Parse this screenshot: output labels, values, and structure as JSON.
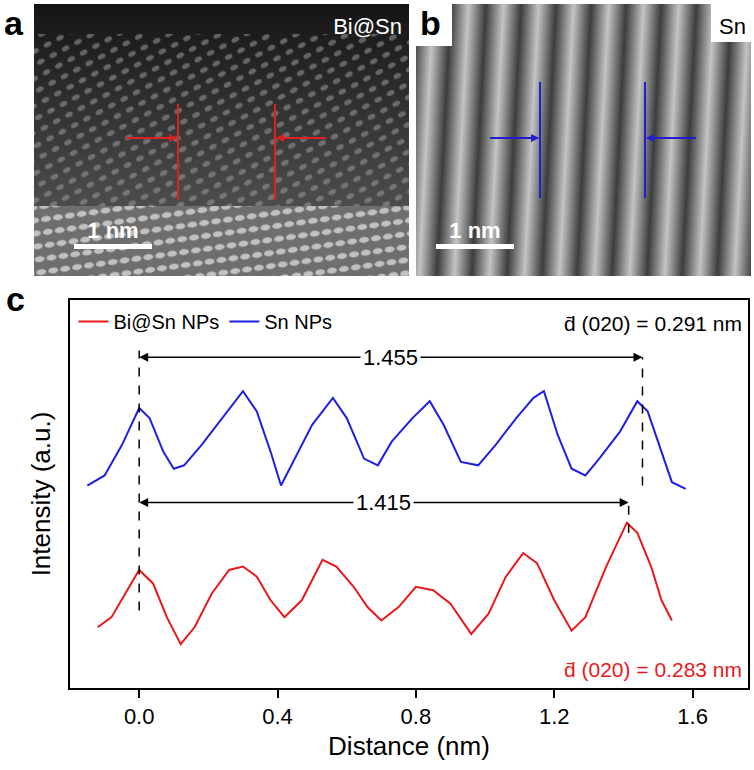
{
  "images": [
    {
      "letter": "a",
      "label": "Bi@Sn",
      "scale_bar": "1 nm"
    },
    {
      "letter": "b",
      "label": "Sn",
      "scale_bar": "1 nm"
    }
  ],
  "chart_data": {
    "letter": "c",
    "type": "line",
    "x_label": "Distance (nm)",
    "y_label": "Intensity (a.u.)",
    "xlim": [
      -0.2,
      1.76
    ],
    "ylim": [
      -1,
      10.5
    ],
    "xticks": [
      {
        "value": 0,
        "label": "0.0"
      },
      0.4,
      0.8,
      1.2,
      1.6
    ],
    "tick_labels": "x",
    "grid": false,
    "legend": "top left",
    "series": [
      {
        "name": "Bi@Sn NPs",
        "color": "#e8191c",
        "x": [
          -0.12,
          -0.08,
          -0.04,
          0.0,
          0.04,
          0.08,
          0.12,
          0.16,
          0.21,
          0.26,
          0.3,
          0.34,
          0.38,
          0.42,
          0.47,
          0.53,
          0.57,
          0.62,
          0.66,
          0.7,
          0.75,
          0.8,
          0.85,
          0.9,
          0.96,
          1.01,
          1.06,
          1.11,
          1.15,
          1.2,
          1.25,
          1.29,
          1.35,
          1.41,
          1.44,
          1.48,
          1.51,
          1.54
        ],
        "values": [
          0.8,
          1.1,
          1.8,
          2.5,
          2.1,
          1.1,
          0.3,
          0.8,
          1.8,
          2.5,
          2.6,
          2.3,
          1.6,
          1.1,
          1.6,
          2.8,
          2.6,
          2.0,
          1.4,
          1.0,
          1.4,
          2.0,
          1.9,
          1.5,
          0.6,
          1.2,
          2.3,
          3.0,
          2.7,
          1.6,
          0.7,
          1.1,
          2.6,
          3.9,
          3.6,
          2.6,
          1.6,
          1.0
        ]
      },
      {
        "name": "Sn NPs",
        "color": "#2020e0",
        "x": [
          -0.15,
          -0.1,
          -0.05,
          0.0,
          0.03,
          0.07,
          0.1,
          0.13,
          0.18,
          0.24,
          0.3,
          0.34,
          0.38,
          0.41,
          0.45,
          0.5,
          0.56,
          0.6,
          0.65,
          0.69,
          0.73,
          0.79,
          0.84,
          0.88,
          0.93,
          0.98,
          1.03,
          1.09,
          1.14,
          1.17,
          1.21,
          1.25,
          1.29,
          1.33,
          1.39,
          1.44,
          1.47,
          1.51,
          1.54,
          1.58
        ],
        "values": [
          5.0,
          5.3,
          6.2,
          7.3,
          7.0,
          6.0,
          5.5,
          5.6,
          6.2,
          7.0,
          7.8,
          7.2,
          6.0,
          5.0,
          5.8,
          6.8,
          7.6,
          7.0,
          5.8,
          5.6,
          6.3,
          7.0,
          7.5,
          6.8,
          5.7,
          5.6,
          6.2,
          7.0,
          7.6,
          7.8,
          6.5,
          5.5,
          5.3,
          5.8,
          6.6,
          7.5,
          7.2,
          6.0,
          5.1,
          4.9
        ]
      }
    ],
    "measurements": [
      {
        "label": "1.455",
        "x0": 0,
        "x1": 1.455,
        "y": 8.8
      },
      {
        "label": "1.415",
        "x0": 0,
        "x1": 1.415,
        "y": 4.5
      }
    ],
    "guides": [
      {
        "x": 0,
        "y0": 1.3,
        "y1": 9.0
      },
      {
        "x": 1.455,
        "y0": 5.0,
        "y1": 8.8
      },
      {
        "x": 1.415,
        "y0": 3.6,
        "y1": 4.5
      }
    ],
    "annotations": [
      {
        "text": "d̄ (020) = 0.291 nm",
        "x": 1.76,
        "y": 9.8,
        "color": "#000000"
      },
      {
        "text": "d̄ (020) = 0.283 nm",
        "x": 1.76,
        "y": -0.45,
        "color": "#e8191c"
      }
    ]
  }
}
